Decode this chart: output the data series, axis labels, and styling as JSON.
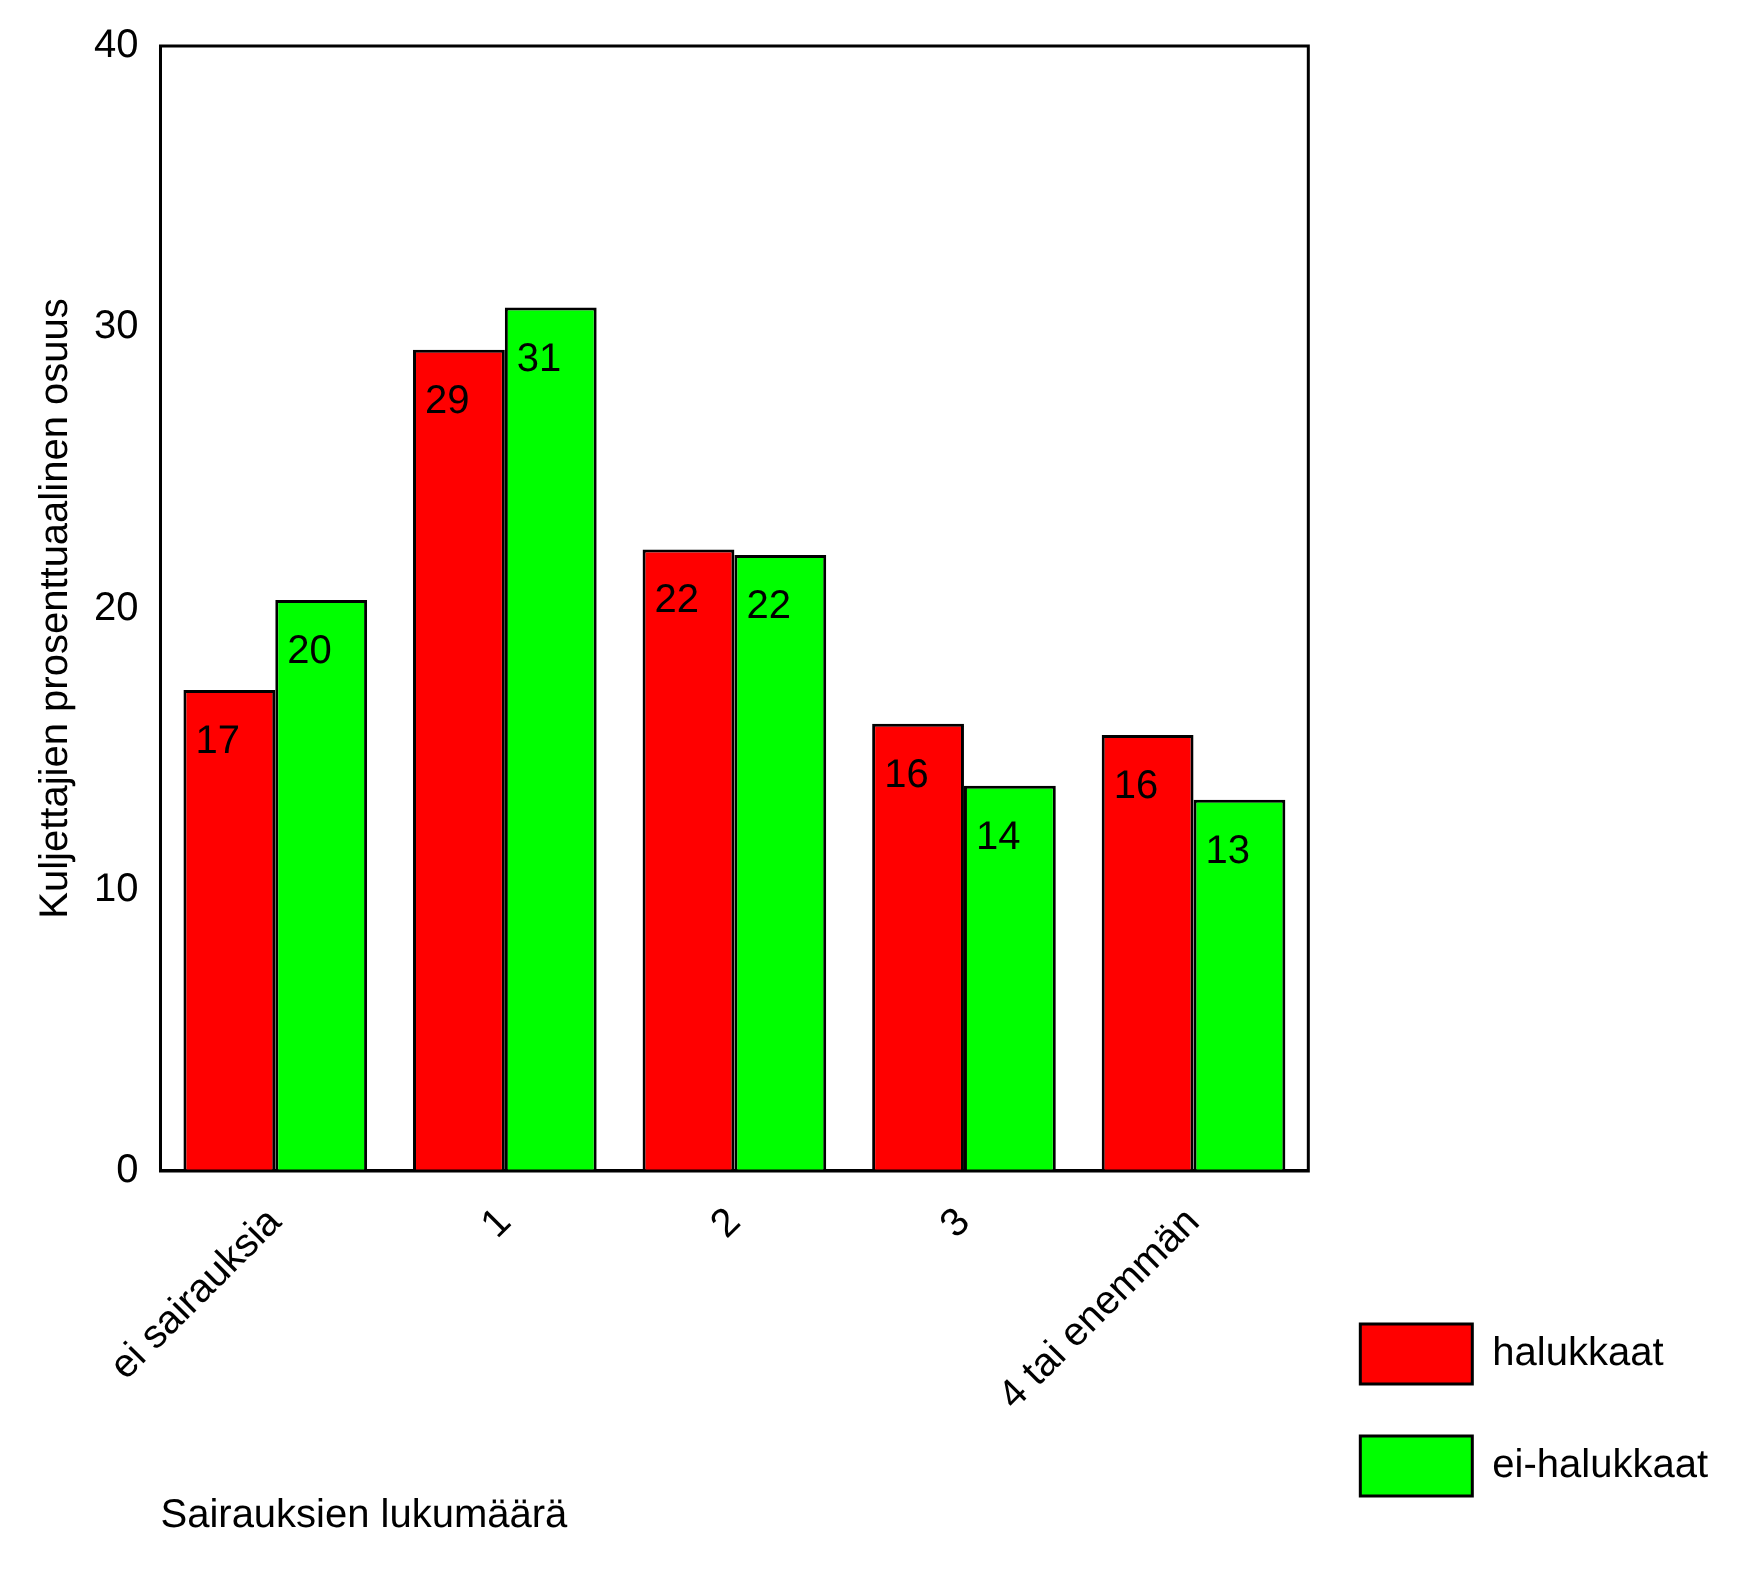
{
  "chart_data": {
    "type": "bar",
    "xlabel": "Sairauksien lukumäärä",
    "ylabel": "Kuljettajien prosenttuaalinen osuus",
    "categories": [
      "ei sairauksia",
      "1",
      "2",
      "3",
      "4 tai enemmän"
    ],
    "series": [
      {
        "name": "halukkaat",
        "color": "#ff0000",
        "values": [
          17.1,
          29.2,
          22.1,
          15.9,
          15.5
        ],
        "value_labels": [
          "17",
          "29",
          "22",
          "16",
          "16"
        ]
      },
      {
        "name": "ei-halukkaat",
        "color": "#00ff00",
        "values": [
          20.3,
          30.7,
          21.9,
          13.7,
          13.2
        ],
        "value_labels": [
          "20",
          "31",
          "22",
          "14",
          "13"
        ]
      }
    ],
    "ylim": [
      0,
      40
    ],
    "yticks": [
      0,
      10,
      20,
      30,
      40
    ],
    "grid": false,
    "legend": "right"
  }
}
